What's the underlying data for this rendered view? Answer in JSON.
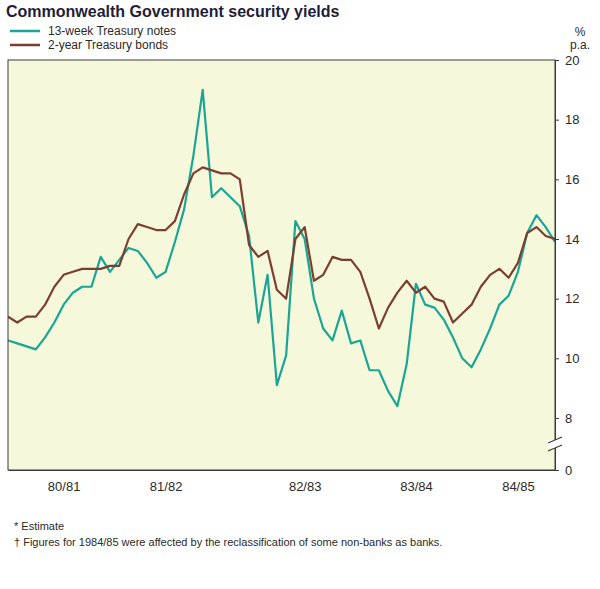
{
  "chart_data": {
    "type": "line",
    "title": "Commonwealth Government security yields",
    "ylabel": "% p.a.",
    "categories": [
      null,
      null,
      null,
      null,
      null,
      null,
      "80/81",
      null,
      null,
      null,
      null,
      null,
      null,
      null,
      null,
      null,
      null,
      "81/82",
      null,
      null,
      null,
      null,
      null,
      null,
      null,
      null,
      null,
      null,
      null,
      null,
      null,
      null,
      "82/83",
      null,
      null,
      null,
      null,
      null,
      null,
      null,
      null,
      null,
      null,
      null,
      "83/84",
      null,
      null,
      null,
      null,
      null,
      null,
      null,
      null,
      null,
      null,
      "84/85",
      null,
      null,
      null,
      null
    ],
    "series": [
      {
        "name": "13-week Treasury notes",
        "color": "#1aa595",
        "values": [
          10.6,
          10.5,
          10.4,
          10.3,
          10.7,
          11.2,
          11.8,
          12.2,
          12.4,
          12.4,
          13.4,
          12.9,
          13.3,
          13.7,
          13.6,
          13.2,
          12.7,
          12.9,
          13.9,
          15.0,
          16.8,
          19.0,
          15.4,
          15.7,
          15.4,
          15.1,
          14.1,
          11.2,
          12.8,
          9.1,
          10.1,
          14.6,
          14.0,
          12.0,
          11.0,
          10.6,
          11.6,
          10.5,
          10.6,
          9.6,
          9.6,
          8.9,
          8.4,
          9.8,
          12.5,
          11.8,
          11.7,
          11.3,
          10.7,
          10.0,
          9.7,
          10.3,
          11.0,
          11.8,
          12.1,
          12.9,
          14.2,
          14.8,
          14.4,
          13.9
        ]
      },
      {
        "name": "2-year Treasury bonds",
        "color": "#7b3f30",
        "values": [
          11.4,
          11.2,
          11.4,
          11.4,
          11.8,
          12.4,
          12.8,
          12.9,
          13.0,
          13.0,
          13.0,
          13.1,
          13.1,
          14.0,
          14.5,
          14.4,
          14.3,
          14.3,
          14.6,
          15.5,
          16.2,
          16.4,
          16.3,
          16.2,
          16.2,
          16.0,
          13.8,
          13.4,
          13.6,
          12.3,
          12.0,
          14.0,
          14.4,
          12.6,
          12.8,
          13.4,
          13.3,
          13.3,
          12.9,
          12.0,
          11.0,
          11.7,
          12.2,
          12.6,
          12.2,
          12.4,
          12.0,
          11.9,
          11.2,
          11.5,
          11.8,
          12.4,
          12.8,
          13.0,
          12.7,
          13.2,
          14.2,
          14.4,
          14.1,
          14.0
        ]
      }
    ],
    "ylim": [
      0,
      20
    ],
    "yticks": [
      0,
      8,
      10,
      12,
      14,
      16,
      18,
      20
    ],
    "grid": false,
    "legend": "top-left",
    "annotations": [
      "* Estimate",
      "† Figures for 1984/85 were affected by the reclassification of some non-banks as banks."
    ]
  }
}
